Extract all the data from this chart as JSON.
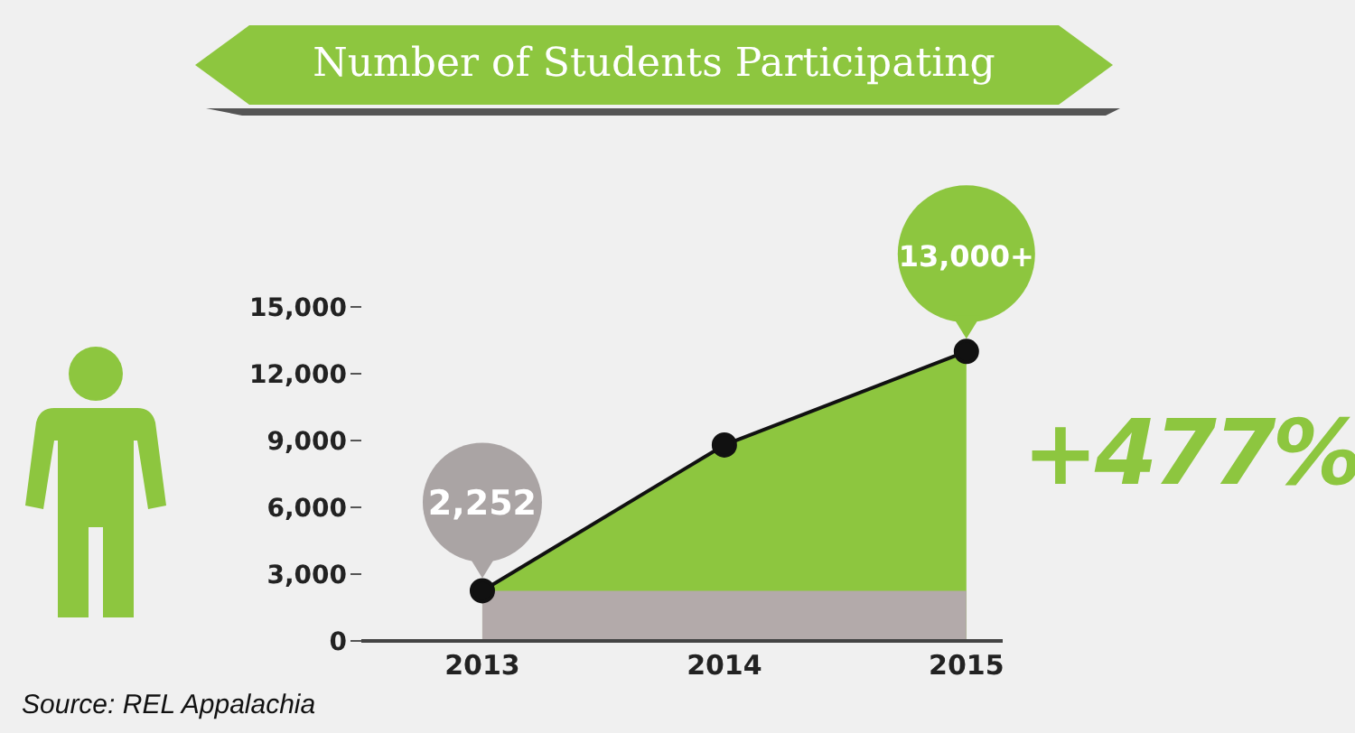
{
  "chart_data": {
    "type": "area",
    "title": "Number of Students Participating",
    "x": [
      2013,
      2014,
      2015
    ],
    "series": [
      {
        "color": "#8dc63f",
        "values": [
          2252,
          8800,
          13000
        ]
      }
    ],
    "xlim": [
      2012.5,
      2015.15
    ],
    "xticks": [
      2013,
      2014,
      2015
    ],
    "ylim": [
      0,
      15000
    ],
    "yticks": [
      0,
      {
        "value": 3000,
        "label": "3,000"
      },
      {
        "value": 6000,
        "label": "6,000"
      },
      {
        "value": 9000,
        "label": "9,000"
      },
      {
        "value": 12000,
        "label": "12,000"
      },
      {
        "value": 15000,
        "label": "15,000"
      }
    ],
    "grid": false,
    "legend": false,
    "marker": "circle",
    "bands": [
      {
        "axis": "y",
        "from": 0,
        "to": 2252,
        "color": "#b3aaaa"
      }
    ],
    "annotations": [
      {
        "text": "2,252",
        "x": 2013,
        "y": 2252
      },
      {
        "text": "13,000+",
        "x": 2015,
        "y": 13000
      },
      "+477%",
      "Source: REL Appalachia"
    ]
  }
}
